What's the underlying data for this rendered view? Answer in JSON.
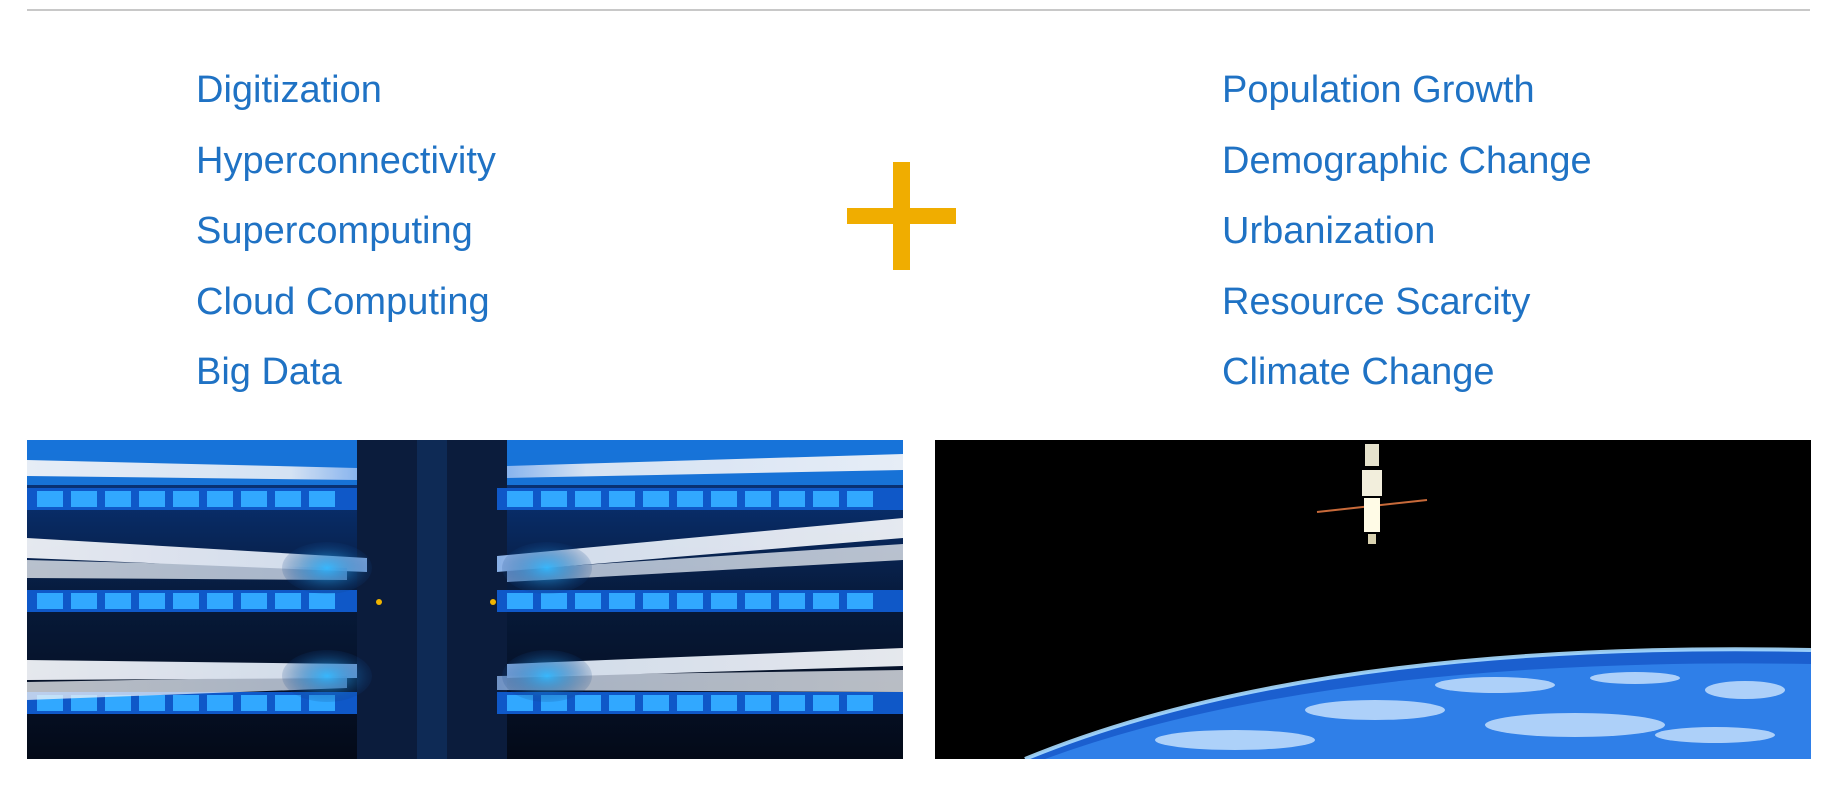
{
  "left_list": {
    "items": [
      "Digitization",
      "Hyperconnectivity",
      "Supercomputing",
      "Cloud Computing",
      "Big Data"
    ]
  },
  "right_list": {
    "items": [
      "Population Growth",
      "Demographic Change",
      "Urbanization",
      "Resource Scarcity",
      "Climate Change"
    ]
  },
  "plus_sign": {
    "color": "#f0ad00"
  },
  "colors": {
    "list_text": "#1f72c4",
    "rule": "#c8c8c8"
  },
  "images": {
    "left": {
      "icon": "network-patch-panel-photo"
    },
    "right": {
      "icon": "satellite-over-earth-photo"
    }
  }
}
